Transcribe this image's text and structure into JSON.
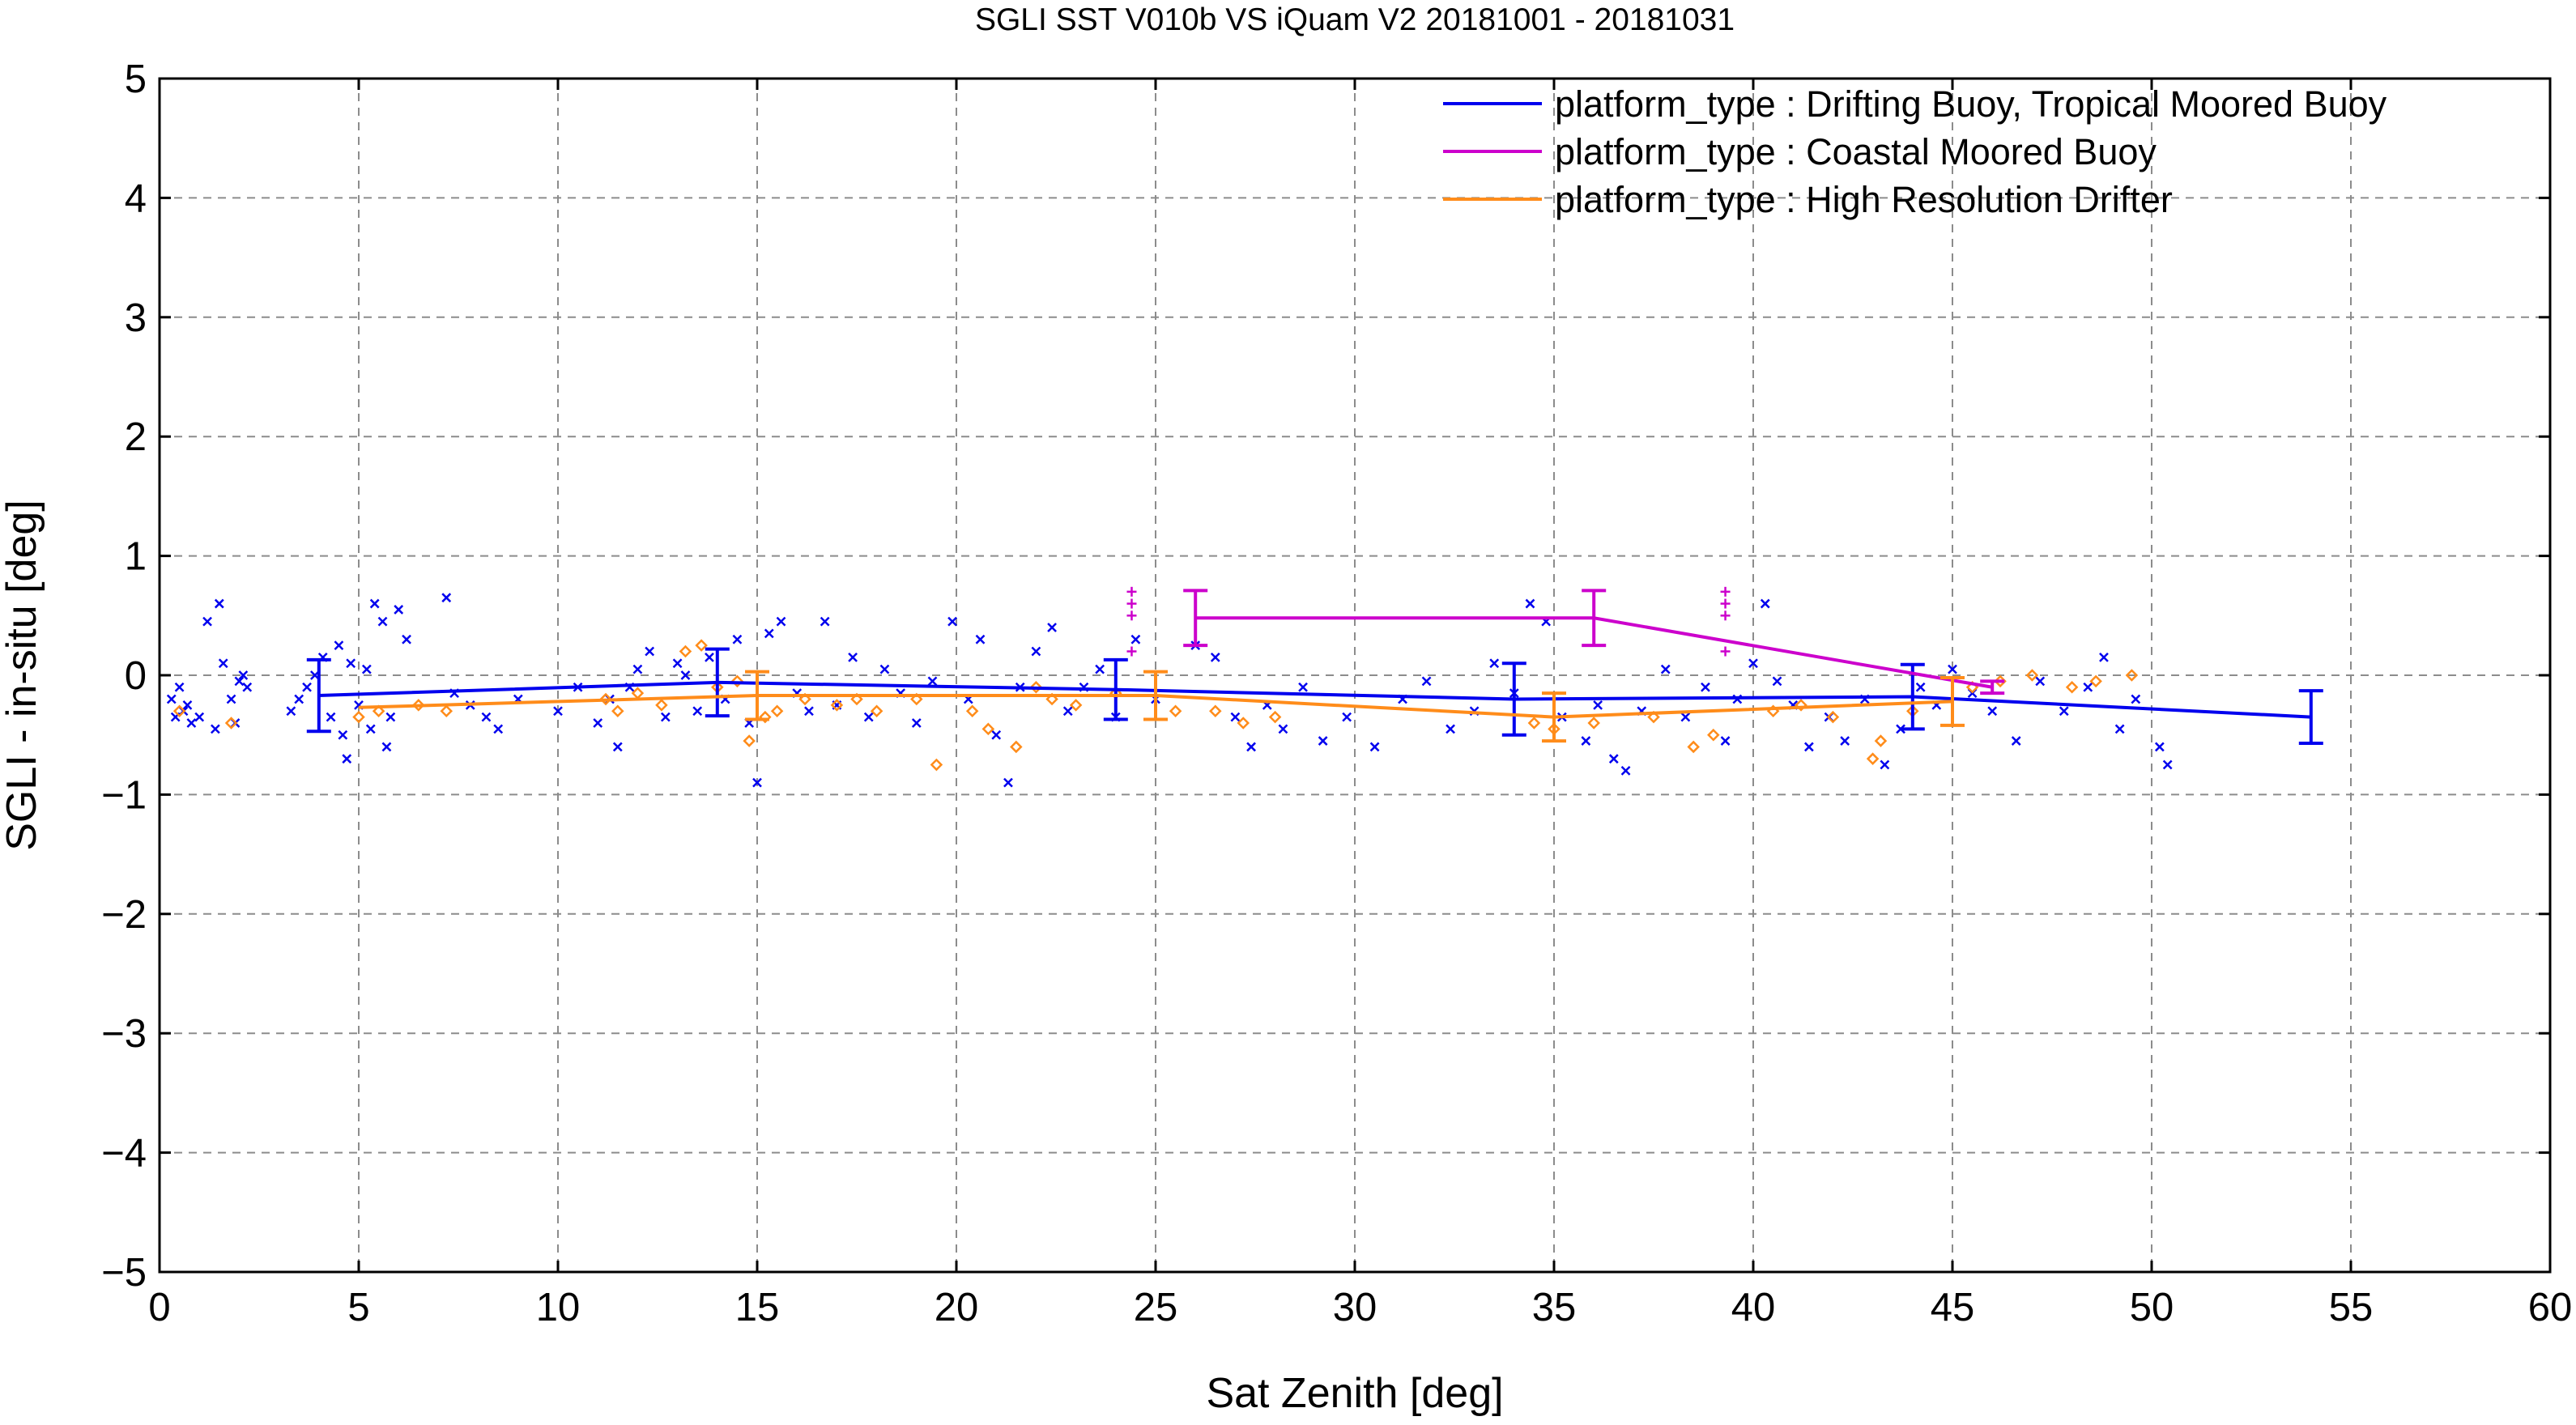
{
  "chart_data": {
    "type": "scatter",
    "title": "SGLI SST V010b VS iQuam V2 20181001 - 20181031",
    "xlabel": "Sat Zenith [deg]",
    "ylabel": "SGLI - in-situ [deg]",
    "xlim": [
      0,
      60
    ],
    "ylim": [
      -5,
      5
    ],
    "x_ticks": [
      "0",
      "5",
      "10",
      "15",
      "20",
      "25",
      "30",
      "35",
      "40",
      "45",
      "50",
      "55",
      "60"
    ],
    "y_ticks": [
      "5",
      "4",
      "3",
      "2",
      "1",
      "0",
      "−1",
      "−2",
      "−3",
      "−4",
      "−5"
    ],
    "grid": true,
    "legend_position": "top-right",
    "series": [
      {
        "name": "platform_type : Drifting Buoy, Tropical Moored Buoy",
        "color": "#0000ee",
        "marker": "x",
        "mean_line": {
          "x": [
            4,
            14,
            24,
            34,
            44,
            54
          ],
          "y": [
            -0.17,
            -0.06,
            -0.12,
            -0.2,
            -0.18,
            -0.35
          ],
          "err": [
            0.3,
            0.28,
            0.25,
            0.3,
            0.27,
            0.22
          ]
        },
        "points": [
          [
            0.3,
            -0.2
          ],
          [
            0.4,
            -0.35
          ],
          [
            0.5,
            -0.1
          ],
          [
            0.6,
            -0.3
          ],
          [
            0.7,
            -0.25
          ],
          [
            0.8,
            -0.4
          ],
          [
            1.0,
            -0.35
          ],
          [
            1.2,
            0.45
          ],
          [
            1.4,
            -0.45
          ],
          [
            1.5,
            0.6
          ],
          [
            1.6,
            0.1
          ],
          [
            1.8,
            -0.2
          ],
          [
            1.9,
            -0.4
          ],
          [
            2.0,
            -0.05
          ],
          [
            2.1,
            0.0
          ],
          [
            2.2,
            -0.1
          ],
          [
            3.3,
            -0.3
          ],
          [
            3.5,
            -0.2
          ],
          [
            3.7,
            -0.1
          ],
          [
            3.9,
            0.0
          ],
          [
            4.1,
            0.15
          ],
          [
            4.3,
            -0.35
          ],
          [
            4.5,
            0.25
          ],
          [
            4.6,
            -0.5
          ],
          [
            4.7,
            -0.7
          ],
          [
            4.8,
            0.1
          ],
          [
            5.0,
            -0.25
          ],
          [
            5.2,
            0.05
          ],
          [
            5.3,
            -0.45
          ],
          [
            5.4,
            0.6
          ],
          [
            5.6,
            0.45
          ],
          [
            5.7,
            -0.6
          ],
          [
            5.8,
            -0.35
          ],
          [
            6.0,
            0.55
          ],
          [
            6.2,
            0.3
          ],
          [
            7.2,
            0.65
          ],
          [
            7.4,
            -0.15
          ],
          [
            7.8,
            -0.25
          ],
          [
            8.2,
            -0.35
          ],
          [
            8.5,
            -0.45
          ],
          [
            9.0,
            -0.2
          ],
          [
            10.0,
            -0.3
          ],
          [
            10.5,
            -0.1
          ],
          [
            11.0,
            -0.4
          ],
          [
            11.3,
            -0.2
          ],
          [
            11.5,
            -0.6
          ],
          [
            11.8,
            -0.1
          ],
          [
            12.0,
            0.05
          ],
          [
            12.3,
            0.2
          ],
          [
            12.7,
            -0.35
          ],
          [
            13.0,
            0.1
          ],
          [
            13.2,
            0.0
          ],
          [
            13.5,
            -0.3
          ],
          [
            13.8,
            0.15
          ],
          [
            14.2,
            -0.2
          ],
          [
            14.5,
            0.3
          ],
          [
            14.8,
            -0.4
          ],
          [
            15.0,
            -0.9
          ],
          [
            15.3,
            0.35
          ],
          [
            15.6,
            0.45
          ],
          [
            16.0,
            -0.15
          ],
          [
            16.3,
            -0.3
          ],
          [
            16.7,
            0.45
          ],
          [
            17.0,
            -0.25
          ],
          [
            17.4,
            0.15
          ],
          [
            17.8,
            -0.35
          ],
          [
            18.2,
            0.05
          ],
          [
            18.6,
            -0.15
          ],
          [
            19.0,
            -0.4
          ],
          [
            19.4,
            -0.05
          ],
          [
            19.9,
            0.45
          ],
          [
            20.3,
            -0.2
          ],
          [
            20.6,
            0.3
          ],
          [
            21.0,
            -0.5
          ],
          [
            21.3,
            -0.9
          ],
          [
            21.6,
            -0.1
          ],
          [
            22.0,
            0.2
          ],
          [
            22.4,
            0.4
          ],
          [
            22.8,
            -0.3
          ],
          [
            23.2,
            -0.1
          ],
          [
            23.6,
            0.05
          ],
          [
            24.0,
            -0.35
          ],
          [
            24.5,
            0.3
          ],
          [
            25.0,
            -0.2
          ],
          [
            26.0,
            0.25
          ],
          [
            26.5,
            0.15
          ],
          [
            27.0,
            -0.35
          ],
          [
            27.4,
            -0.6
          ],
          [
            27.8,
            -0.25
          ],
          [
            28.2,
            -0.45
          ],
          [
            28.7,
            -0.1
          ],
          [
            29.2,
            -0.55
          ],
          [
            29.8,
            -0.35
          ],
          [
            30.5,
            -0.6
          ],
          [
            31.2,
            -0.2
          ],
          [
            31.8,
            -0.05
          ],
          [
            32.4,
            -0.45
          ],
          [
            33.0,
            -0.3
          ],
          [
            33.5,
            0.1
          ],
          [
            34.0,
            -0.15
          ],
          [
            34.4,
            0.6
          ],
          [
            34.8,
            0.45
          ],
          [
            35.2,
            -0.35
          ],
          [
            35.8,
            -0.55
          ],
          [
            36.1,
            -0.25
          ],
          [
            36.5,
            -0.7
          ],
          [
            36.8,
            -0.8
          ],
          [
            37.2,
            -0.3
          ],
          [
            37.8,
            0.05
          ],
          [
            38.3,
            -0.35
          ],
          [
            38.8,
            -0.1
          ],
          [
            39.3,
            -0.55
          ],
          [
            39.6,
            -0.2
          ],
          [
            40.0,
            0.1
          ],
          [
            40.3,
            0.6
          ],
          [
            40.6,
            -0.05
          ],
          [
            41.0,
            -0.25
          ],
          [
            41.4,
            -0.6
          ],
          [
            41.9,
            -0.35
          ],
          [
            42.3,
            -0.55
          ],
          [
            42.8,
            -0.2
          ],
          [
            43.3,
            -0.75
          ],
          [
            43.7,
            -0.45
          ],
          [
            44.2,
            -0.1
          ],
          [
            44.6,
            -0.25
          ],
          [
            45.0,
            0.05
          ],
          [
            45.5,
            -0.15
          ],
          [
            46.0,
            -0.3
          ],
          [
            46.6,
            -0.55
          ],
          [
            47.2,
            -0.05
          ],
          [
            47.8,
            -0.3
          ],
          [
            48.4,
            -0.1
          ],
          [
            48.8,
            0.15
          ],
          [
            49.2,
            -0.45
          ],
          [
            49.6,
            -0.2
          ],
          [
            50.2,
            -0.6
          ],
          [
            50.4,
            -0.75
          ]
        ]
      },
      {
        "name": "platform_type : Coastal Moored Buoy",
        "color": "#cc00cc",
        "marker": "+",
        "mean_line": {
          "x": [
            26,
            36,
            46
          ],
          "y": [
            0.48,
            0.48,
            -0.1
          ],
          "err": [
            0.23,
            0.23,
            0.05
          ]
        },
        "points": [
          [
            24.4,
            0.7
          ],
          [
            24.4,
            0.6
          ],
          [
            24.4,
            0.5
          ],
          [
            24.4,
            0.2
          ],
          [
            39.3,
            0.7
          ],
          [
            39.3,
            0.6
          ],
          [
            39.3,
            0.5
          ],
          [
            39.3,
            0.2
          ]
        ]
      },
      {
        "name": "platform_type : High Resolution Drifter",
        "color": "#ff8c1a",
        "marker": "diamond",
        "mean_line": {
          "x": [
            5,
            15,
            25,
            35,
            45
          ],
          "y": [
            -0.27,
            -0.17,
            -0.17,
            -0.35,
            -0.22
          ],
          "err": [
            0.0,
            0.2,
            0.2,
            0.2,
            0.2
          ]
        },
        "points": [
          [
            0.5,
            -0.3
          ],
          [
            1.8,
            -0.4
          ],
          [
            5.0,
            -0.35
          ],
          [
            5.5,
            -0.3
          ],
          [
            6.5,
            -0.25
          ],
          [
            7.2,
            -0.3
          ],
          [
            11.2,
            -0.2
          ],
          [
            11.5,
            -0.3
          ],
          [
            12.0,
            -0.15
          ],
          [
            12.6,
            -0.25
          ],
          [
            13.2,
            0.2
          ],
          [
            13.6,
            0.25
          ],
          [
            14.0,
            -0.1
          ],
          [
            14.5,
            -0.05
          ],
          [
            14.8,
            -0.55
          ],
          [
            15.2,
            -0.35
          ],
          [
            15.5,
            -0.3
          ],
          [
            16.2,
            -0.2
          ],
          [
            17.0,
            -0.25
          ],
          [
            17.5,
            -0.2
          ],
          [
            18.0,
            -0.3
          ],
          [
            19.0,
            -0.2
          ],
          [
            19.5,
            -0.75
          ],
          [
            20.4,
            -0.3
          ],
          [
            20.8,
            -0.45
          ],
          [
            21.5,
            -0.6
          ],
          [
            22.0,
            -0.1
          ],
          [
            22.4,
            -0.2
          ],
          [
            23.0,
            -0.25
          ],
          [
            24.0,
            -0.15
          ],
          [
            25.5,
            -0.3
          ],
          [
            26.5,
            -0.3
          ],
          [
            27.2,
            -0.4
          ],
          [
            28.0,
            -0.35
          ],
          [
            34.5,
            -0.4
          ],
          [
            35.0,
            -0.45
          ],
          [
            36.0,
            -0.4
          ],
          [
            37.5,
            -0.35
          ],
          [
            38.5,
            -0.6
          ],
          [
            39.0,
            -0.5
          ],
          [
            40.5,
            -0.3
          ],
          [
            41.2,
            -0.25
          ],
          [
            42.0,
            -0.35
          ],
          [
            43.0,
            -0.7
          ],
          [
            43.2,
            -0.55
          ],
          [
            44.0,
            -0.3
          ],
          [
            45.5,
            -0.1
          ],
          [
            46.2,
            -0.05
          ],
          [
            47.0,
            0.0
          ],
          [
            48.0,
            -0.1
          ],
          [
            48.6,
            -0.05
          ],
          [
            49.5,
            0.0
          ]
        ]
      }
    ]
  }
}
